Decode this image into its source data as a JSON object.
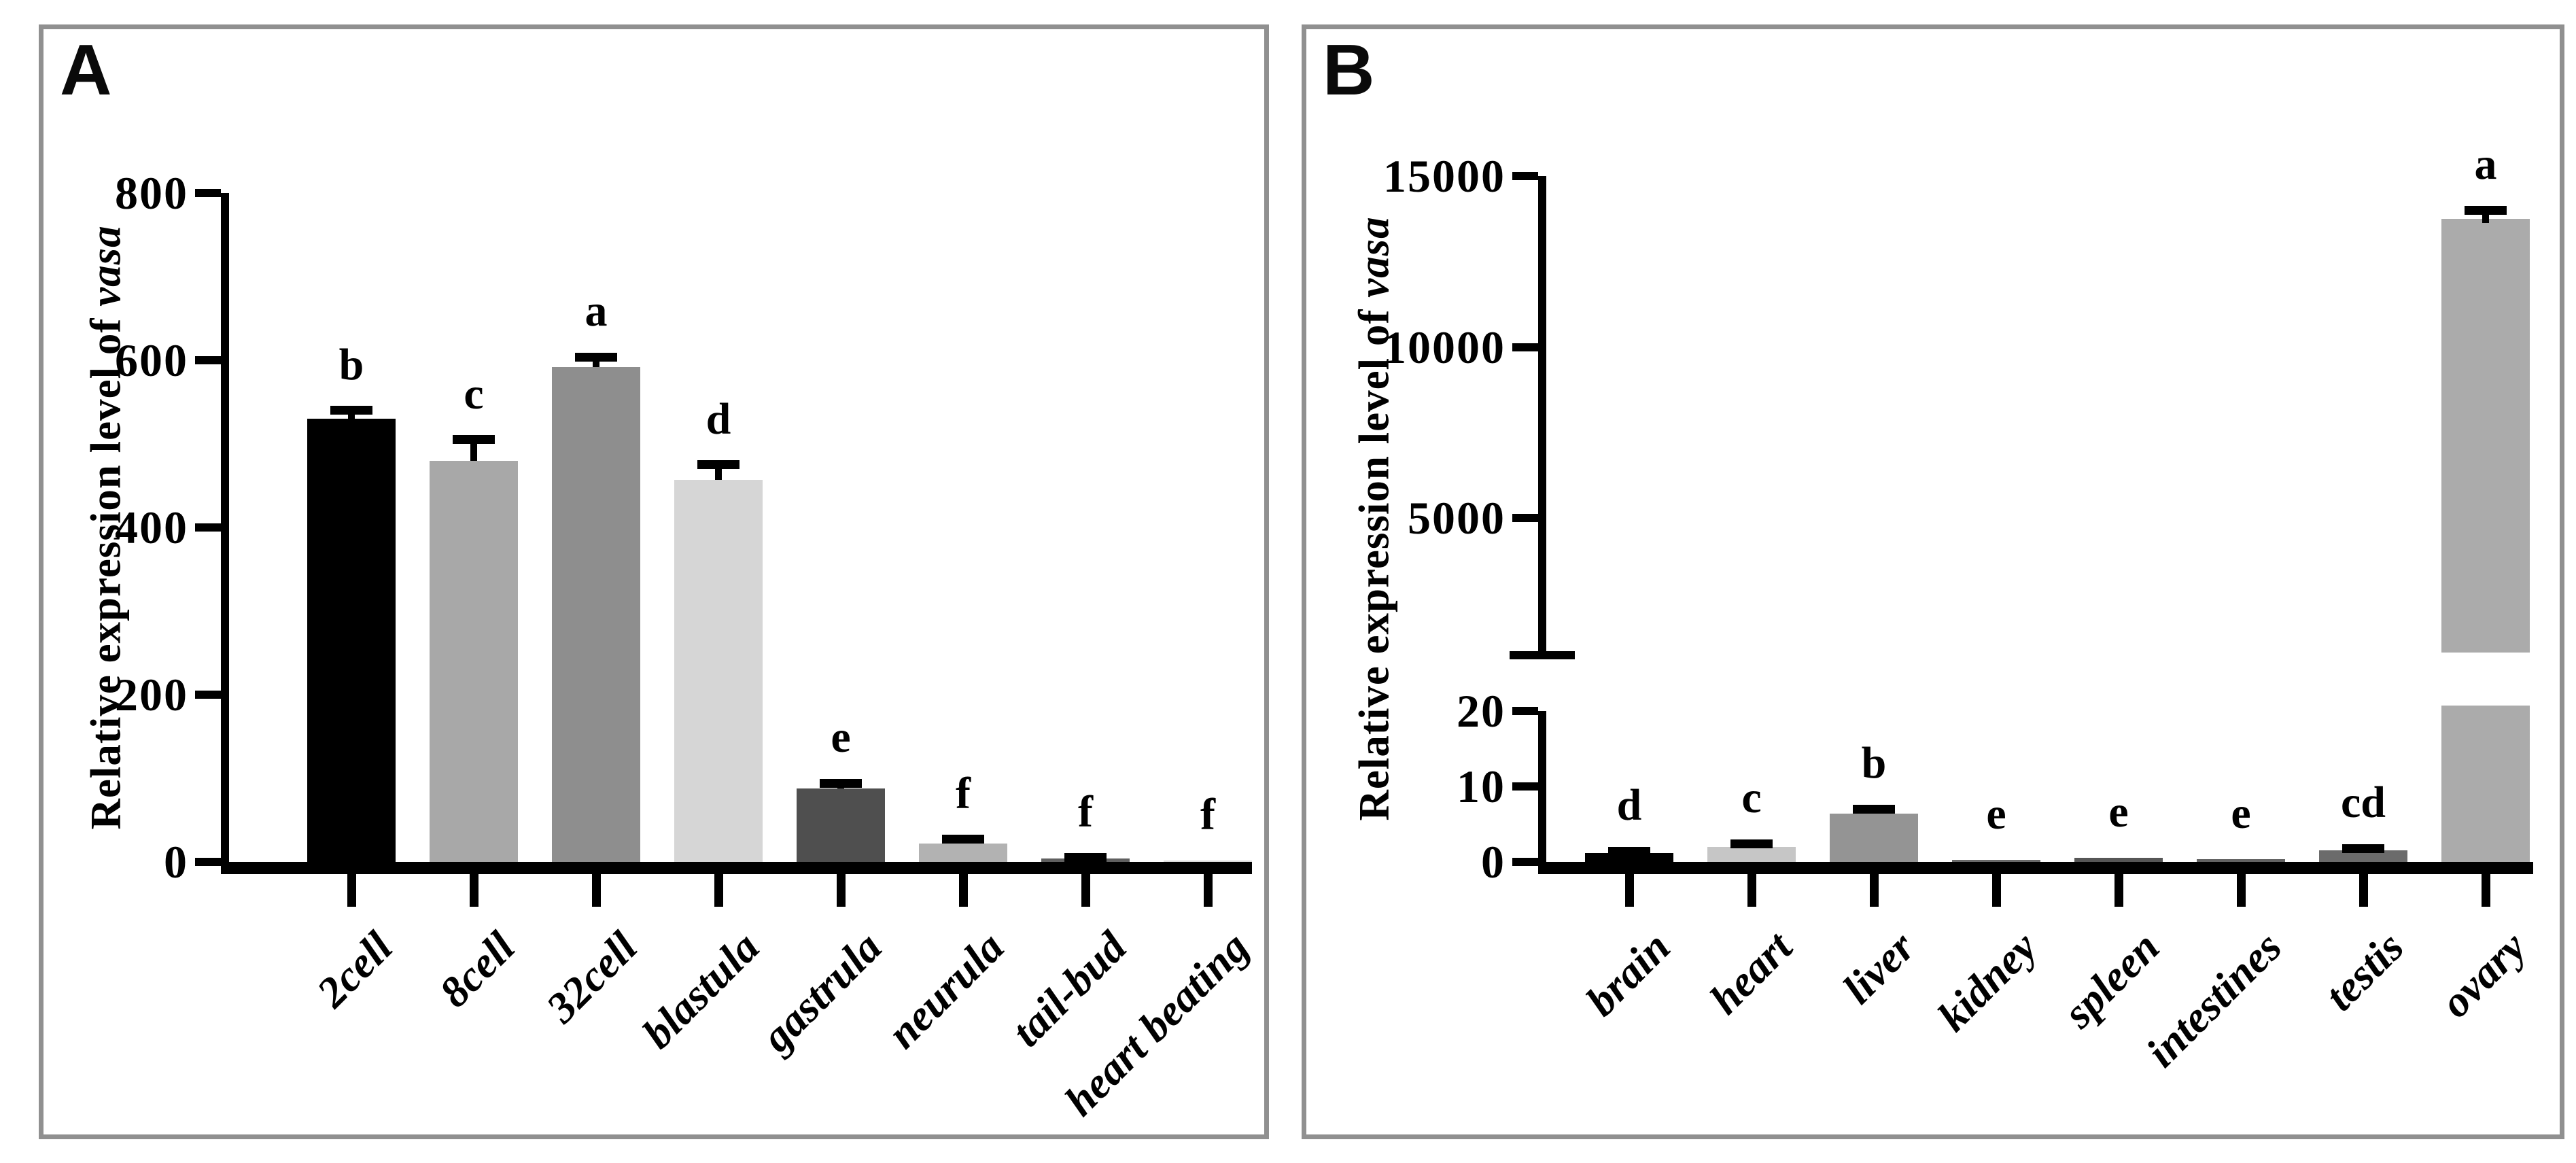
{
  "panels": [
    {
      "label": "A",
      "ylabel_plain": "Relative expression level of ",
      "ylabel_italic": "vasa"
    },
    {
      "label": "B",
      "ylabel_plain": "Relative expression level of ",
      "ylabel_italic": "vasa"
    }
  ],
  "chart_data": [
    {
      "type": "bar",
      "panel": "A",
      "title": "",
      "xlabel": "",
      "ylabel": "Relative expression level of vasa",
      "categories": [
        "2cell",
        "8cell",
        "32cell",
        "blastula",
        "gastrula",
        "neurula",
        "tail-bud",
        "heart beating"
      ],
      "values": [
        530,
        480,
        592,
        457,
        88,
        22,
        4,
        2
      ],
      "errors": [
        10,
        25,
        12,
        18,
        6,
        5,
        1,
        0
      ],
      "sig_letters": [
        "b",
        "c",
        "a",
        "d",
        "e",
        "f",
        "f",
        "f"
      ],
      "bar_colors": [
        "#000000",
        "#a8a8a8",
        "#8e8e8e",
        "#d6d6d6",
        "#4f4f4f",
        "#b2b2b2",
        "#606060",
        "#dcdcdc"
      ],
      "ylim": [
        0,
        800
      ],
      "yticks": [
        0,
        200,
        400,
        600,
        800
      ],
      "grid": false,
      "legend": "none",
      "error_color": "#000000"
    },
    {
      "type": "bar",
      "panel": "B",
      "title": "",
      "xlabel": "",
      "ylabel": "Relative expression level of vasa",
      "categories": [
        "brain",
        "heart",
        "liver",
        "kidney",
        "spleen",
        "intestines",
        "testis",
        "ovary"
      ],
      "values": [
        1.2,
        2.0,
        6.4,
        0.3,
        0.5,
        0.4,
        1.5,
        13750
      ],
      "errors": [
        0.2,
        0.4,
        0.6,
        0,
        0,
        0,
        0.3,
        250
      ],
      "sig_letters": [
        "d",
        "c",
        "b",
        "e",
        "e",
        "e",
        "cd",
        "a"
      ],
      "bar_colors": [
        "#000000",
        "#c6c6c6",
        "#949494",
        "#6a6a6a",
        "#565656",
        "#636363",
        "#6b6b6b",
        "#ababab"
      ],
      "axis_break": {
        "lower_ylim": [
          0,
          20
        ],
        "lower_yticks": [
          0,
          10,
          20
        ],
        "upper_yticks": [
          5000,
          10000,
          15000
        ],
        "upper_ylim_shown": [
          1000,
          15000
        ]
      },
      "grid": false,
      "legend": "none",
      "error_color": "#000000"
    }
  ]
}
